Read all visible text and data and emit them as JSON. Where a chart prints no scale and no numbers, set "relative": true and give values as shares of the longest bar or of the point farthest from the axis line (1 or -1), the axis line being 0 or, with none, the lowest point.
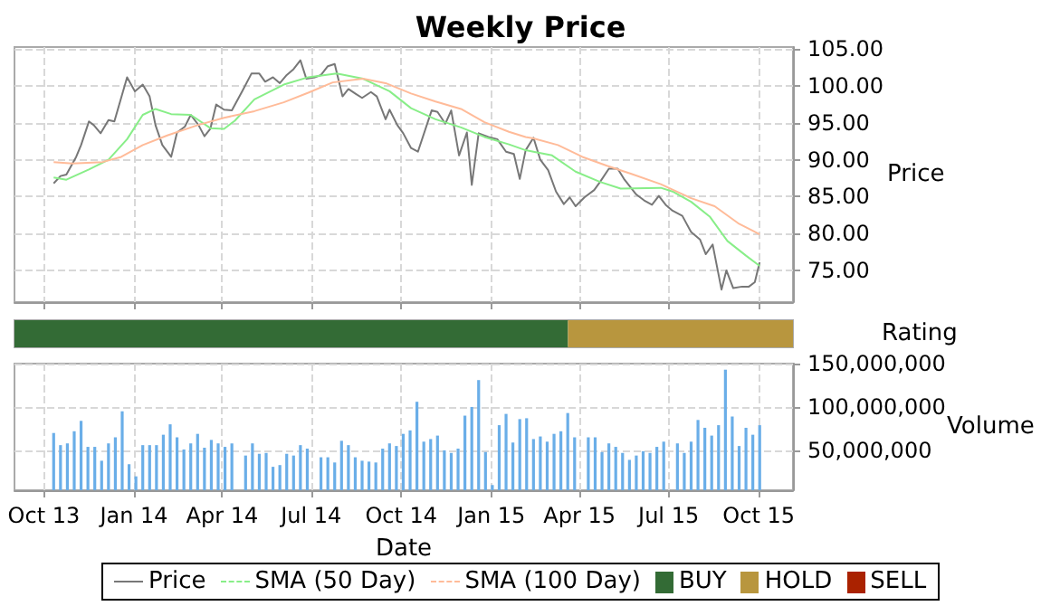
{
  "chart_data": [
    {
      "type": "line",
      "title": "Weekly Price",
      "ylabel": "Price",
      "xlim": [
        "2013-09-01",
        "2015-11-05"
      ],
      "ylim": [
        70.7,
        105.3
      ],
      "xticks": [
        {
          "value": "2013-10-01",
          "label": null
        },
        {
          "value": "2014-01-01",
          "label": null
        },
        {
          "value": "2014-04-01",
          "label": null
        },
        {
          "value": "2014-07-01",
          "label": null
        },
        {
          "value": "2014-10-01",
          "label": null
        },
        {
          "value": "2015-01-01",
          "label": null
        },
        {
          "value": "2015-04-01",
          "label": null
        },
        {
          "value": "2015-07-01",
          "label": null
        },
        {
          "value": "2015-10-01",
          "label": null
        }
      ],
      "yticks": [
        {
          "value": 75,
          "label": "75.00"
        },
        {
          "value": 80,
          "label": "80.00"
        },
        {
          "value": 85,
          "label": "85.00"
        },
        {
          "value": 90,
          "label": "90.00"
        },
        {
          "value": 95,
          "label": "95.00"
        },
        {
          "value": 100,
          "label": "100.00"
        },
        {
          "value": 105,
          "label": "105.00"
        }
      ],
      "grid": true,
      "tick_labels": "y",
      "marker": "none",
      "legend": "bottom",
      "series": [
        {
          "name": "Price",
          "color": "#777777",
          "x": [
            "2013-10-11",
            "2013-10-18",
            "2013-10-24",
            "2013-11-03",
            "2013-11-08",
            "2013-11-16",
            "2013-11-21",
            "2013-11-28",
            "2013-12-06",
            "2013-12-12",
            "2013-12-25",
            "2014-01-02",
            "2014-01-10",
            "2014-01-17",
            "2014-01-23",
            "2014-01-30",
            "2014-02-08",
            "2014-02-14",
            "2014-02-22",
            "2014-02-28",
            "2014-03-08",
            "2014-03-14",
            "2014-03-20",
            "2014-03-26",
            "2014-04-03",
            "2014-04-11",
            "2014-04-22",
            "2014-05-01",
            "2014-05-09",
            "2014-05-15",
            "2014-05-23",
            "2014-05-30",
            "2014-06-06",
            "2014-06-13",
            "2014-06-20",
            "2014-06-26",
            "2014-07-05",
            "2014-07-11",
            "2014-07-18",
            "2014-07-25",
            "2014-08-02",
            "2014-08-08",
            "2014-08-16",
            "2014-08-22",
            "2014-08-31",
            "2014-09-06",
            "2014-09-15",
            "2014-09-19",
            "2014-09-27",
            "2014-10-03",
            "2014-10-11",
            "2014-10-18",
            "2014-11-01",
            "2014-11-07",
            "2014-11-15",
            "2014-11-21",
            "2014-11-29",
            "2014-12-07",
            "2014-12-12",
            "2014-12-19",
            "2014-12-29",
            "2015-01-07",
            "2015-01-16",
            "2015-01-24",
            "2015-01-30",
            "2015-02-05",
            "2015-02-13",
            "2015-02-20",
            "2015-02-28",
            "2015-03-08",
            "2015-03-16",
            "2015-03-22",
            "2015-03-28",
            "2015-04-06",
            "2015-04-16",
            "2015-04-22",
            "2015-05-01",
            "2015-05-10",
            "2015-05-17",
            "2015-05-29",
            "2015-06-06",
            "2015-06-14",
            "2015-06-21",
            "2015-06-28",
            "2015-07-05",
            "2015-07-15",
            "2015-07-24",
            "2015-08-02",
            "2015-08-08",
            "2015-08-15",
            "2015-08-24",
            "2015-08-29",
            "2015-09-05",
            "2015-09-14",
            "2015-09-21",
            "2015-09-27",
            "2015-10-02"
          ],
          "values": [
            86.8,
            87.8,
            88.0,
            90.4,
            92.0,
            95.2,
            94.7,
            93.6,
            95.4,
            95.2,
            101.2,
            99.3,
            100.2,
            98.6,
            94.7,
            92.0,
            90.4,
            93.7,
            94.5,
            96.1,
            94.7,
            93.2,
            94.2,
            97.5,
            96.8,
            96.7,
            99.4,
            101.7,
            101.7,
            100.6,
            101.2,
            100.4,
            101.5,
            102.3,
            103.5,
            101.0,
            101.2,
            101.5,
            102.7,
            103.0,
            98.6,
            99.6,
            98.9,
            98.4,
            99.2,
            98.6,
            95.5,
            96.8,
            94.7,
            93.6,
            91.6,
            91.1,
            96.7,
            96.5,
            94.9,
            96.7,
            90.6,
            93.7,
            86.6,
            93.6,
            93.1,
            92.8,
            91.1,
            90.8,
            87.4,
            91.3,
            93.0,
            90.0,
            88.6,
            85.7,
            84.0,
            84.9,
            83.7,
            84.9,
            85.9,
            87.0,
            88.8,
            88.8,
            87.3,
            85.3,
            84.5,
            83.9,
            85.1,
            83.9,
            83.1,
            82.4,
            80.2,
            79.2,
            77.2,
            78.5,
            72.4,
            75.0,
            72.6,
            72.8,
            72.8,
            73.4,
            76.1
          ]
        },
        {
          "name": "SMA (50 Day)",
          "color": "#88ee88",
          "x": [
            "2013-10-11",
            "2013-10-24",
            "2013-11-16",
            "2013-12-06",
            "2013-12-25",
            "2014-01-10",
            "2014-01-23",
            "2014-02-08",
            "2014-02-28",
            "2014-03-20",
            "2014-04-03",
            "2014-04-14",
            "2014-05-04",
            "2014-06-03",
            "2014-06-28",
            "2014-07-27",
            "2014-08-23",
            "2014-09-19",
            "2014-10-11",
            "2014-11-05",
            "2014-12-01",
            "2014-12-25",
            "2015-01-19",
            "2015-02-05",
            "2015-02-13",
            "2015-03-04",
            "2015-03-28",
            "2015-04-22",
            "2015-05-13",
            "2015-06-23",
            "2015-07-05",
            "2015-07-24",
            "2015-08-12",
            "2015-08-30",
            "2015-09-18",
            "2015-10-02"
          ],
          "values": [
            87.6,
            87.3,
            88.7,
            90.0,
            92.8,
            96.1,
            96.9,
            96.2,
            96.1,
            94.3,
            94.2,
            95.3,
            98.2,
            100.2,
            101.2,
            101.7,
            101.0,
            99.3,
            97.0,
            95.5,
            94.4,
            93.1,
            92.1,
            91.3,
            91.1,
            90.6,
            88.4,
            87.0,
            86.1,
            86.2,
            85.7,
            84.3,
            82.3,
            79.0,
            77.0,
            75.6
          ]
        },
        {
          "name": "SMA (100 Day)",
          "color": "#ffbb99",
          "x": [
            "2013-10-11",
            "2013-10-30",
            "2013-11-30",
            "2013-12-19",
            "2014-01-10",
            "2014-02-04",
            "2014-03-07",
            "2014-04-03",
            "2014-05-04",
            "2014-06-03",
            "2014-06-28",
            "2014-07-23",
            "2014-08-23",
            "2014-09-15",
            "2014-10-11",
            "2014-11-05",
            "2014-12-01",
            "2014-12-25",
            "2015-01-19",
            "2015-02-05",
            "2015-02-13",
            "2015-03-10",
            "2015-04-04",
            "2015-04-29",
            "2015-05-24",
            "2015-06-23",
            "2015-07-24",
            "2015-08-17",
            "2015-09-10",
            "2015-10-02"
          ],
          "values": [
            89.7,
            89.5,
            89.7,
            90.4,
            92.0,
            93.3,
            94.7,
            95.7,
            96.6,
            97.8,
            99.1,
            100.5,
            101.0,
            100.4,
            99.0,
            97.9,
            96.9,
            95.1,
            93.8,
            93.1,
            92.9,
            92.0,
            90.4,
            89.2,
            88.1,
            86.7,
            84.8,
            83.7,
            81.4,
            79.9
          ]
        }
      ]
    },
    {
      "type": "bar",
      "orientation": "horizontal",
      "stacked": true,
      "relative": true,
      "ylabel": "Rating",
      "categories": [
        null
      ],
      "legend": "bottom",
      "series": [
        {
          "name": "BUY",
          "color": "#336b35",
          "values": [
            0.711
          ]
        },
        {
          "name": "HOLD",
          "color": "#b8963e",
          "values": [
            0.289
          ]
        },
        {
          "name": "SELL",
          "color": "#aa2200",
          "values": [
            null
          ]
        }
      ]
    },
    {
      "type": "bar",
      "xlabel": "Date",
      "ylabel": "Volume",
      "color": "#6aaee8",
      "xlim": [
        "2013-09-01",
        "2015-11-05"
      ],
      "ylim": [
        4000000,
        150000000
      ],
      "xticks": [
        {
          "value": "2013-10-01",
          "label": "Oct 13"
        },
        {
          "value": "2014-01-01",
          "label": "Jan 14"
        },
        {
          "value": "2014-04-01",
          "label": "Apr 14"
        },
        {
          "value": "2014-07-01",
          "label": "Jul 14"
        },
        {
          "value": "2014-10-01",
          "label": "Oct 14"
        },
        {
          "value": "2015-01-01",
          "label": "Jan 15"
        },
        {
          "value": "2015-04-01",
          "label": "Apr 15"
        },
        {
          "value": "2015-07-01",
          "label": "Jul 15"
        },
        {
          "value": "2015-10-01",
          "label": "Oct 15"
        }
      ],
      "yticks": [
        {
          "value": 50000000,
          "label": "50,000,000"
        },
        {
          "value": 100000000,
          "label": "100,000,000"
        },
        {
          "value": 150000000,
          "label": "150,000,000"
        }
      ],
      "grid": true,
      "x": [
        "2013-10-11",
        "2013-10-18",
        "2013-10-25",
        "2013-11-01",
        "2013-11-08",
        "2013-11-15",
        "2013-11-22",
        "2013-11-29",
        "2013-12-06",
        "2013-12-13",
        "2013-12-20",
        "2013-12-27",
        "2014-01-03",
        "2014-01-10",
        "2014-01-17",
        "2014-01-24",
        "2014-01-31",
        "2014-02-07",
        "2014-02-14",
        "2014-02-21",
        "2014-02-28",
        "2014-03-07",
        "2014-03-14",
        "2014-03-21",
        "2014-03-28",
        "2014-04-04",
        "2014-04-11",
        "2014-04-18",
        "2014-04-25",
        "2014-05-02",
        "2014-05-09",
        "2014-05-16",
        "2014-05-23",
        "2014-05-30",
        "2014-06-06",
        "2014-06-13",
        "2014-06-20",
        "2014-06-27",
        "2014-07-04",
        "2014-07-11",
        "2014-07-18",
        "2014-07-25",
        "2014-08-01",
        "2014-08-08",
        "2014-08-15",
        "2014-08-22",
        "2014-08-29",
        "2014-09-05",
        "2014-09-12",
        "2014-09-19",
        "2014-09-26",
        "2014-10-03",
        "2014-10-10",
        "2014-10-17",
        "2014-10-24",
        "2014-10-31",
        "2014-11-07",
        "2014-11-14",
        "2014-11-21",
        "2014-11-28",
        "2014-12-05",
        "2014-12-12",
        "2014-12-19",
        "2014-12-26",
        "2015-01-02",
        "2015-01-09",
        "2015-01-16",
        "2015-01-23",
        "2015-01-30",
        "2015-02-06",
        "2015-02-13",
        "2015-02-20",
        "2015-02-27",
        "2015-03-06",
        "2015-03-13",
        "2015-03-20",
        "2015-03-27",
        "2015-04-03",
        "2015-04-10",
        "2015-04-17",
        "2015-04-24",
        "2015-05-01",
        "2015-05-08",
        "2015-05-15",
        "2015-05-22",
        "2015-05-29",
        "2015-06-05",
        "2015-06-12",
        "2015-06-19",
        "2015-06-26",
        "2015-07-03",
        "2015-07-10",
        "2015-07-17",
        "2015-07-24",
        "2015-07-31",
        "2015-08-07",
        "2015-08-14",
        "2015-08-21",
        "2015-08-28",
        "2015-09-04",
        "2015-09-11",
        "2015-09-18",
        "2015-09-25",
        "2015-10-02"
      ],
      "values": [
        70000000,
        56000000,
        58000000,
        72000000,
        84000000,
        54000000,
        54000000,
        38000000,
        58000000,
        65000000,
        95000000,
        34000000,
        20000000,
        56000000,
        56000000,
        56000000,
        68000000,
        80000000,
        65000000,
        51000000,
        58000000,
        69000000,
        53000000,
        62000000,
        58000000,
        54000000,
        58000000,
        null,
        44000000,
        58000000,
        46000000,
        47000000,
        31000000,
        33000000,
        46000000,
        44000000,
        56000000,
        52000000,
        null,
        42000000,
        42000000,
        36000000,
        61000000,
        56000000,
        42000000,
        38000000,
        37000000,
        36000000,
        52000000,
        58000000,
        55000000,
        69000000,
        73000000,
        106000000,
        60000000,
        63000000,
        67000000,
        50000000,
        47000000,
        52000000,
        90000000,
        100000000,
        131000000,
        48000000,
        10000000,
        79000000,
        92000000,
        59000000,
        86000000,
        87000000,
        63000000,
        66000000,
        60000000,
        69000000,
        72000000,
        93000000,
        65000000,
        null,
        65000000,
        65000000,
        48000000,
        58000000,
        54000000,
        47000000,
        39000000,
        44000000,
        49000000,
        47000000,
        54000000,
        60000000,
        null,
        58000000,
        47000000,
        60000000,
        85000000,
        76000000,
        67000000,
        79000000,
        143000000,
        89000000,
        55000000,
        76000000,
        68000000,
        79000000
      ]
    }
  ]
}
